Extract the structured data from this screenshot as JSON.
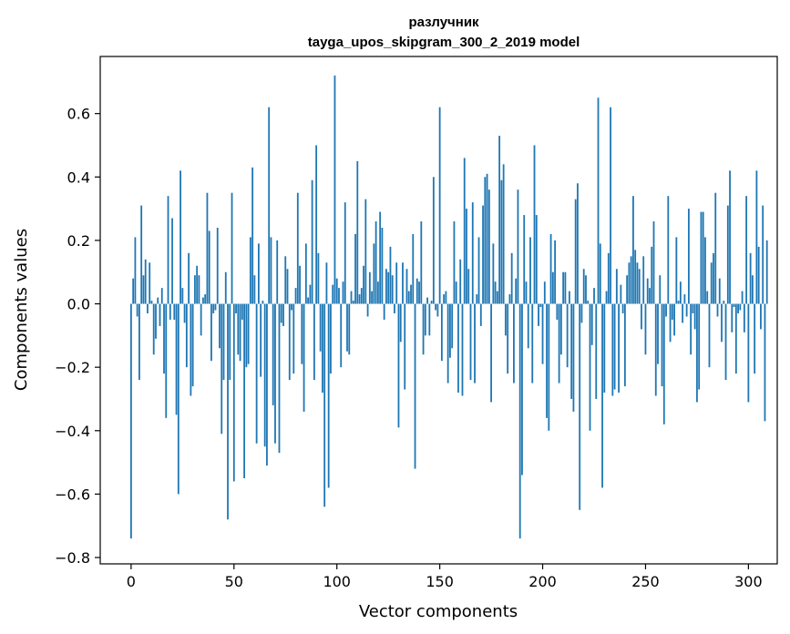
{
  "chart_data": {
    "type": "bar",
    "title": "разлучник",
    "subtitle": "tayga_upos_skipgram_300_2_2019 model",
    "xlabel": "Vector components",
    "ylabel": "Components values",
    "xlim": [
      -15,
      314
    ],
    "ylim": [
      -0.82,
      0.78
    ],
    "xticks": [
      0,
      50,
      100,
      150,
      200,
      250,
      300
    ],
    "yticks": [
      -0.8,
      -0.6,
      -0.4,
      -0.2,
      0.0,
      0.2,
      0.4,
      0.6
    ],
    "ytick_labels": [
      "−0.8",
      "−0.6",
      "−0.4",
      "−0.2",
      "0.0",
      "0.2",
      "0.4",
      "0.6"
    ],
    "bar_color": "#1f77b4",
    "grid": false,
    "values": [
      -0.74,
      0.08,
      0.21,
      -0.04,
      -0.24,
      0.31,
      0.09,
      0.14,
      -0.03,
      0.13,
      0.01,
      -0.16,
      -0.11,
      0.02,
      -0.07,
      0.05,
      -0.22,
      -0.36,
      0.34,
      -0.05,
      0.27,
      -0.05,
      -0.35,
      -0.6,
      0.42,
      0.05,
      -0.06,
      -0.2,
      0.16,
      -0.29,
      -0.26,
      0.09,
      0.12,
      0.09,
      -0.1,
      0.02,
      0.03,
      0.35,
      0.23,
      -0.18,
      -0.03,
      -0.02,
      0.24,
      -0.14,
      -0.41,
      -0.24,
      0.1,
      -0.68,
      -0.24,
      0.35,
      -0.56,
      -0.03,
      -0.16,
      -0.18,
      -0.05,
      -0.55,
      -0.2,
      -0.19,
      0.21,
      0.43,
      0.09,
      -0.44,
      0.19,
      -0.23,
      0.01,
      -0.45,
      -0.51,
      0.62,
      0.21,
      -0.32,
      -0.44,
      0.2,
      -0.47,
      -0.06,
      -0.07,
      0.15,
      0.11,
      -0.24,
      -0.02,
      -0.22,
      0.05,
      0.35,
      0.12,
      -0.19,
      -0.34,
      0.19,
      0.02,
      0.06,
      0.39,
      -0.24,
      0.5,
      0.16,
      -0.15,
      -0.28,
      -0.64,
      0.13,
      -0.58,
      -0.22,
      0.06,
      0.72,
      0.08,
      0.05,
      -0.2,
      0.07,
      0.32,
      -0.15,
      -0.16,
      0.04,
      0.01,
      0.22,
      0.45,
      0.03,
      0.05,
      0.12,
      0.33,
      -0.04,
      0.1,
      0.04,
      0.19,
      0.26,
      0.07,
      0.29,
      0.24,
      -0.05,
      0.11,
      0.1,
      0.18,
      0.09,
      -0.03,
      0.13,
      -0.39,
      -0.12,
      0.13,
      -0.27,
      0.11,
      0.04,
      0.06,
      0.22,
      -0.52,
      0.08,
      0.07,
      0.26,
      -0.16,
      -0.1,
      0.02,
      -0.1,
      0.01,
      0.4,
      -0.02,
      -0.04,
      0.62,
      -0.18,
      0.03,
      0.04,
      -0.25,
      -0.17,
      -0.14,
      0.26,
      0.07,
      -0.28,
      0.14,
      -0.29,
      0.46,
      0.3,
      0.11,
      -0.24,
      0.32,
      -0.25,
      0.03,
      0.21,
      -0.07,
      0.31,
      0.4,
      0.41,
      0.36,
      -0.31,
      0.19,
      0.07,
      0.04,
      0.53,
      0.39,
      0.44,
      -0.1,
      -0.22,
      0.03,
      0.16,
      -0.25,
      0.08,
      0.36,
      -0.74,
      -0.54,
      0.28,
      0.07,
      -0.14,
      0.21,
      -0.25,
      0.5,
      0.28,
      -0.07,
      -0.01,
      -0.19,
      0.07,
      -0.36,
      -0.4,
      0.22,
      0.1,
      0.2,
      -0.05,
      -0.25,
      -0.16,
      0.1,
      0.1,
      -0.2,
      0.04,
      -0.3,
      -0.34,
      0.33,
      0.38,
      -0.65,
      -0.06,
      0.11,
      0.09,
      0.01,
      -0.4,
      -0.13,
      0.05,
      -0.3,
      0.65,
      0.19,
      -0.58,
      -0.28,
      0.04,
      0.16,
      0.62,
      -0.29,
      -0.27,
      0.11,
      -0.28,
      0.06,
      -0.03,
      -0.26,
      0.09,
      0.13,
      0.15,
      0.34,
      0.17,
      0.13,
      0.11,
      -0.08,
      0.15,
      -0.16,
      0.08,
      0.05,
      0.18,
      0.26,
      -0.29,
      -0.19,
      0.09,
      -0.26,
      -0.38,
      -0.04,
      0.34,
      -0.12,
      -0.05,
      -0.1,
      0.21,
      0.01,
      0.07,
      -0.06,
      0.03,
      -0.04,
      0.3,
      -0.16,
      -0.03,
      -0.08,
      -0.31,
      -0.27,
      0.29,
      0.29,
      0.21,
      0.04,
      -0.2,
      0.13,
      0.16,
      0.35,
      -0.04,
      0.08,
      -0.12,
      0.01,
      -0.24,
      0.31,
      0.42,
      -0.09,
      -0.01,
      -0.22,
      -0.03,
      -0.02,
      0.04,
      -0.09,
      0.34,
      -0.31,
      0.16,
      0.09,
      -0.22,
      0.42,
      0.18,
      -0.08,
      0.31,
      -0.37,
      0.2
    ]
  }
}
